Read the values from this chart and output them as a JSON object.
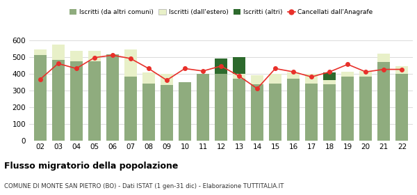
{
  "years": [
    "02",
    "03",
    "04",
    "05",
    "06",
    "07",
    "08",
    "09",
    "10",
    "11",
    "12",
    "13",
    "14",
    "15",
    "16",
    "17",
    "18",
    "19",
    "20",
    "21",
    "22"
  ],
  "iscritti_comuni": [
    510,
    480,
    475,
    475,
    515,
    380,
    340,
    330,
    350,
    400,
    400,
    370,
    335,
    340,
    370,
    340,
    335,
    380,
    380,
    470,
    400
  ],
  "iscritti_estero": [
    35,
    95,
    60,
    60,
    0,
    165,
    65,
    70,
    0,
    0,
    0,
    30,
    55,
    60,
    35,
    60,
    25,
    30,
    35,
    50,
    45
  ],
  "iscritti_altri": [
    0,
    0,
    0,
    0,
    0,
    0,
    0,
    0,
    0,
    0,
    90,
    100,
    0,
    0,
    0,
    0,
    45,
    0,
    0,
    0,
    0
  ],
  "cancellati": [
    365,
    460,
    430,
    495,
    510,
    490,
    430,
    360,
    430,
    415,
    445,
    385,
    310,
    430,
    410,
    380,
    410,
    455,
    410,
    425,
    425
  ],
  "color_comuni": "#8fac7e",
  "color_estero": "#e8f0c8",
  "color_altri": "#2d6a2d",
  "color_cancellati": "#e8302a",
  "ylim": [
    0,
    630
  ],
  "yticks": [
    0,
    100,
    200,
    300,
    400,
    500,
    600
  ],
  "title": "Flusso migratorio della popolazione",
  "subtitle": "COMUNE DI MONTE SAN PIETRO (BO) - Dati ISTAT (1 gen-31 dic) - Elaborazione TUTTITALIA.IT",
  "legend_labels": [
    "Iscritti (da altri comuni)",
    "Iscritti (dall'estero)",
    "Iscritti (altri)",
    "Cancellati dall'Anagrafe"
  ],
  "bg_color": "#ffffff",
  "grid_color": "#cccccc"
}
